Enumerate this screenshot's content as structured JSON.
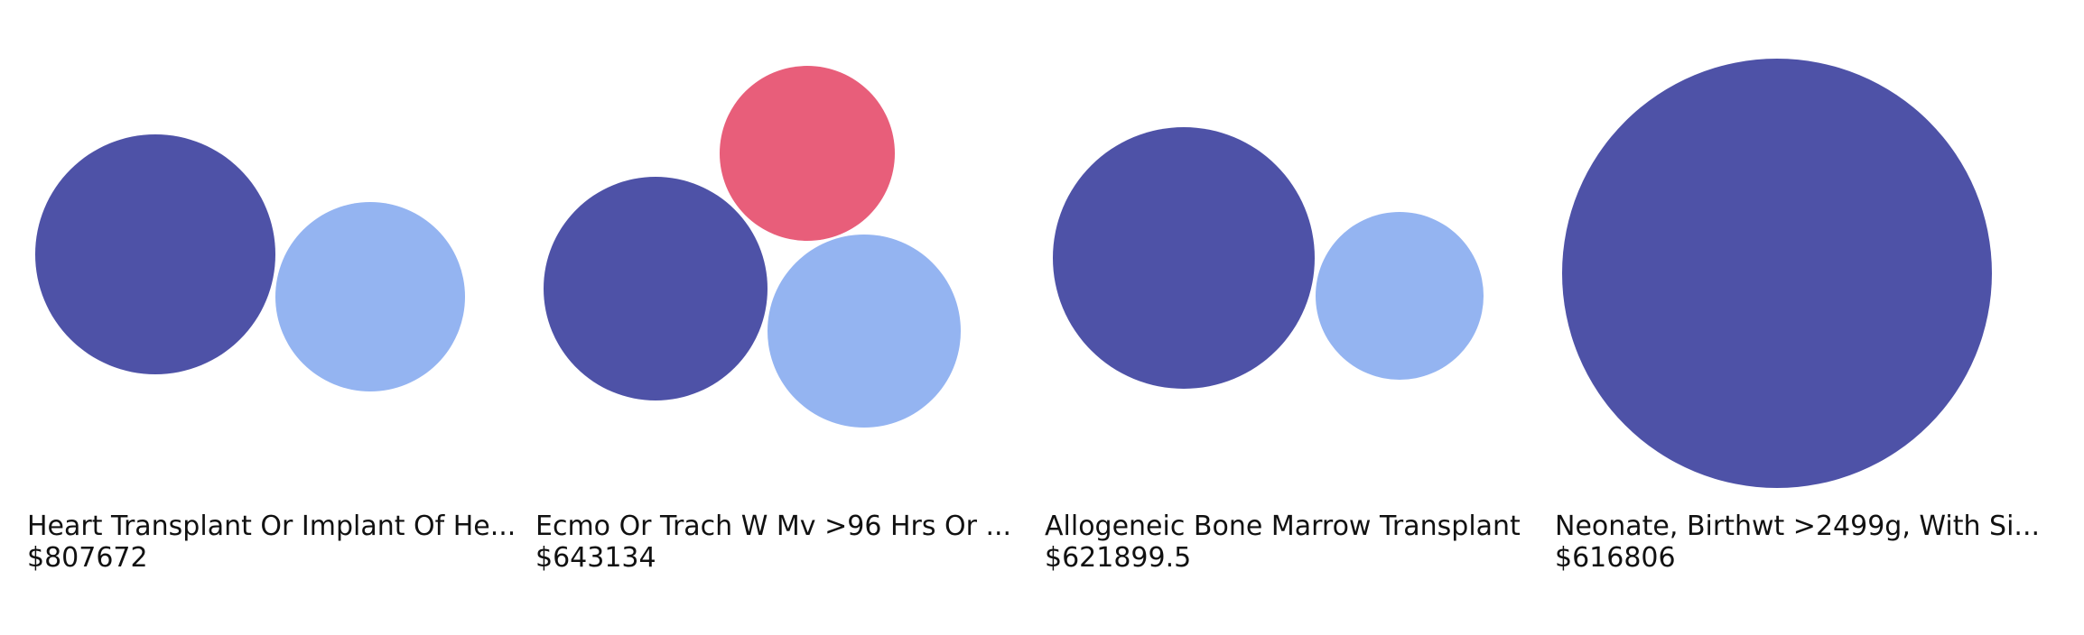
{
  "chart_data": {
    "type": "bubble-grid",
    "colors": {
      "dark_blue": "#4e52a7",
      "light_blue": "#94b4f1",
      "red": "#e85e7a"
    },
    "cells": [
      {
        "title": "Heart Transplant Or Implant Of He...",
        "value_label": "$807672",
        "bubbles": [
          {
            "color": "dark_blue"
          },
          {
            "color": "light_blue"
          }
        ]
      },
      {
        "title": "Ecmo Or Trach W Mv >96 Hrs Or ...",
        "value_label": "$643134",
        "bubbles": [
          {
            "color": "red"
          },
          {
            "color": "dark_blue"
          },
          {
            "color": "light_blue"
          }
        ]
      },
      {
        "title": "Allogeneic Bone Marrow Transplant",
        "value_label": "$621899.5",
        "bubbles": [
          {
            "color": "dark_blue"
          },
          {
            "color": "light_blue"
          }
        ]
      },
      {
        "title": "Neonate, Birthwt >2499g, With Si...",
        "value_label": "$616806",
        "bubbles": [
          {
            "color": "dark_blue"
          }
        ]
      }
    ]
  }
}
